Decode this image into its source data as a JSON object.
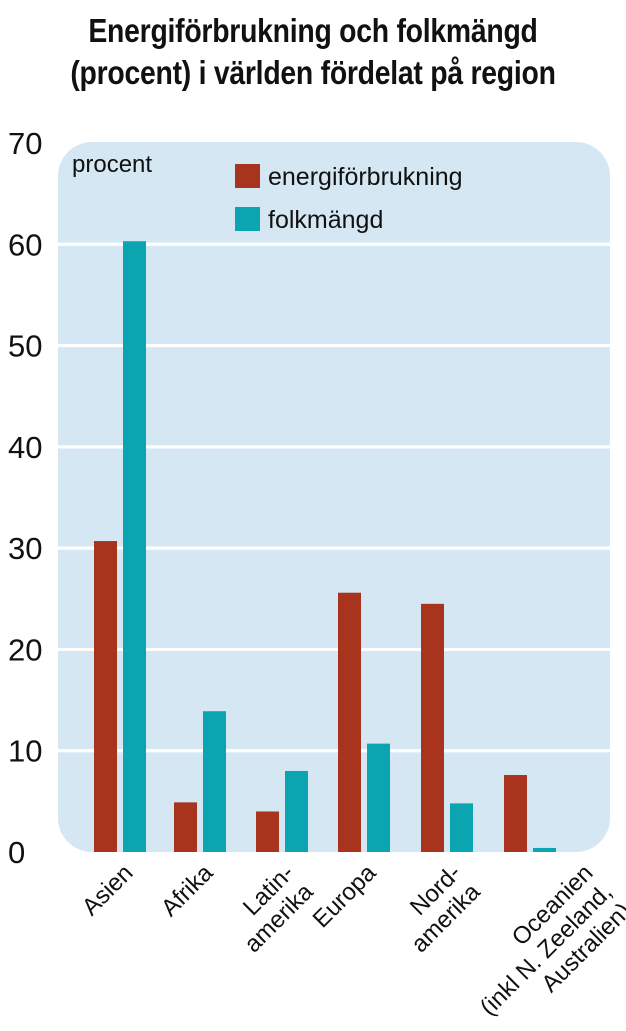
{
  "title_line1": "Energiförbrukning och folkmängd",
  "title_line2": "(procent) i världen fördelat på region",
  "chart_data": {
    "type": "bar",
    "ylabel": "procent",
    "ylim": [
      0,
      70
    ],
    "yticks": [
      0,
      10,
      20,
      30,
      40,
      50,
      60,
      70
    ],
    "grid": true,
    "legend_placement": "top",
    "categories": [
      [
        "Asien"
      ],
      [
        "Afrika"
      ],
      [
        "Latin-",
        "amerika"
      ],
      [
        "Europa"
      ],
      [
        "Nord-",
        "amerika"
      ],
      [
        "Oceanien",
        "(inkl N. Zeeland,",
        "Australien)"
      ]
    ],
    "series": [
      {
        "name": "energiförbrukning",
        "color": "#a8341e",
        "values": [
          30.7,
          4.9,
          4.0,
          25.6,
          24.5,
          7.6
        ]
      },
      {
        "name": "folkmängd",
        "color": "#0aa5b1",
        "values": [
          60.3,
          13.9,
          8.0,
          10.7,
          4.8,
          0.4
        ]
      }
    ],
    "plot_background": "#d4e7f3",
    "grid_color": "#ffffff"
  }
}
